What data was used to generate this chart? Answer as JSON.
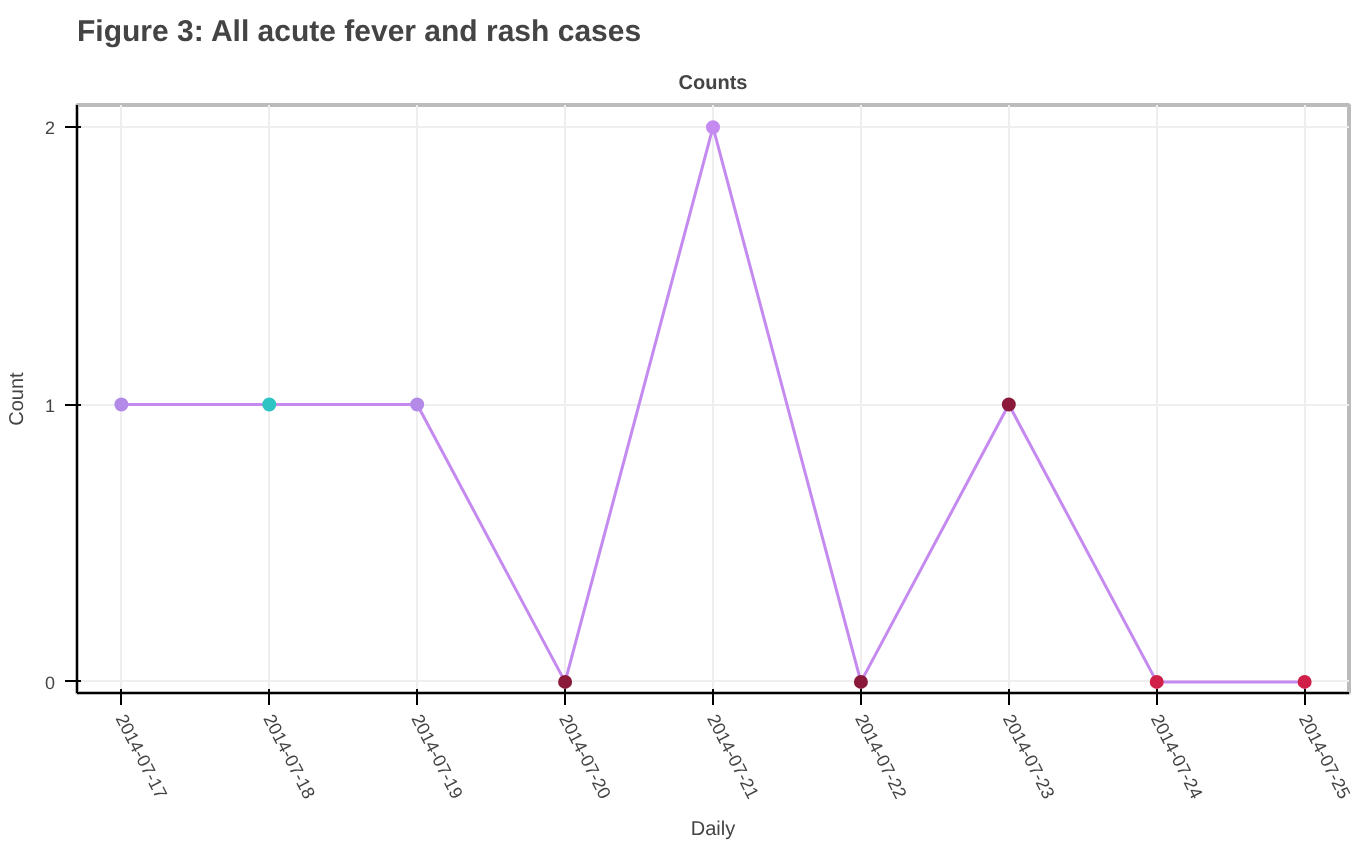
{
  "chart_data": {
    "type": "line",
    "title": "Figure 3: All acute fever and rash cases",
    "subtitle": "Counts",
    "xlabel": "Daily",
    "ylabel": "Count",
    "categories": [
      "2014-07-17",
      "2014-07-18",
      "2014-07-19",
      "2014-07-20",
      "2014-07-21",
      "2014-07-22",
      "2014-07-23",
      "2014-07-24",
      "2014-07-25"
    ],
    "series": [
      {
        "color": "#c58af0",
        "colors": [
          "#b48ae8",
          "#2ec4c4",
          "#b48ae8",
          "#8b1a3a",
          "#c58af0",
          "#8b1a3a",
          "#8b1a3a",
          "#d0204a",
          "#d0204a"
        ],
        "values": [
          1,
          1,
          1,
          0,
          2,
          0,
          1,
          0,
          0
        ]
      }
    ],
    "ylim": [
      -0.04,
      2.08
    ],
    "yticks": [
      0,
      1,
      2
    ],
    "grid": true,
    "marker": "circle"
  }
}
